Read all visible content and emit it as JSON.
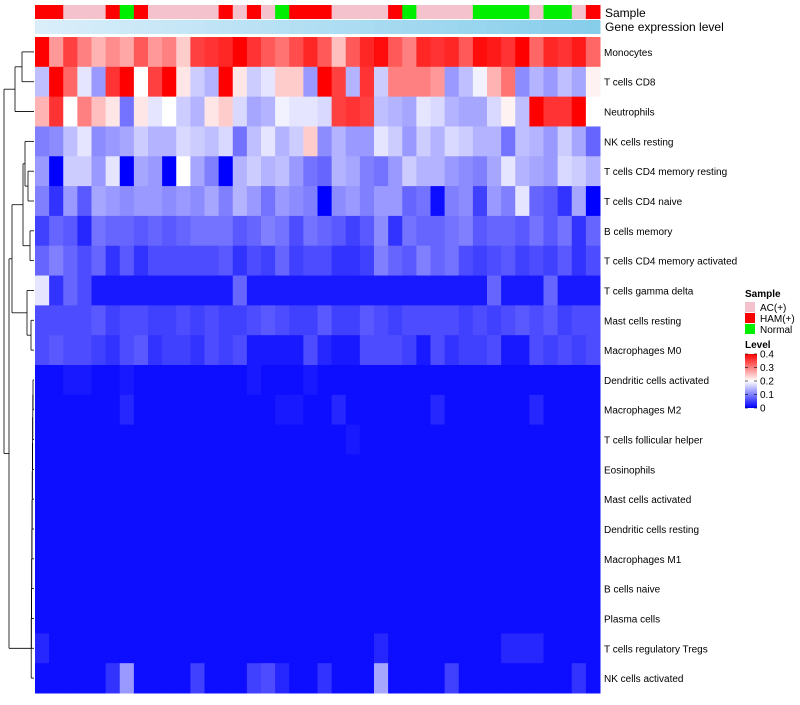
{
  "chart_data": {
    "type": "heatmap",
    "annotation_labels": {
      "sample": "Sample",
      "expression": "Gene expression level"
    },
    "legend": {
      "sample_title": "Sample",
      "sample_groups": [
        {
          "label": "AC(+)",
          "color": "#f4c2cc"
        },
        {
          "label": "HAM(+)",
          "color": "#ff0000"
        },
        {
          "label": "Normal",
          "color": "#00ee00"
        }
      ],
      "level_title": "Level",
      "level_ticks": [
        0.4,
        0.3,
        0.2,
        0.1,
        0
      ],
      "level_min": 0,
      "level_max": 0.4,
      "colors": {
        "low": "#0000ff",
        "mid": "#ffffff",
        "high": "#ff0000"
      }
    },
    "sample_groups_per_column": [
      "HAM(+)",
      "HAM(+)",
      "AC(+)",
      "AC(+)",
      "AC(+)",
      "HAM(+)",
      "Normal",
      "HAM(+)",
      "AC(+)",
      "AC(+)",
      "AC(+)",
      "AC(+)",
      "AC(+)",
      "HAM(+)",
      "AC(+)",
      "HAM(+)",
      "AC(+)",
      "Normal",
      "HAM(+)",
      "HAM(+)",
      "HAM(+)",
      "AC(+)",
      "AC(+)",
      "AC(+)",
      "AC(+)",
      "HAM(+)",
      "Normal",
      "AC(+)",
      "AC(+)",
      "AC(+)",
      "AC(+)",
      "Normal",
      "Normal",
      "Normal",
      "Normal",
      "AC(+)",
      "Normal",
      "Normal",
      "AC(+)",
      "HAM(+)"
    ],
    "rows": [
      {
        "label": "Monocytes",
        "values": [
          0.4,
          0.28,
          0.35,
          0.3,
          0.26,
          0.29,
          0.27,
          0.33,
          0.28,
          0.3,
          0.24,
          0.35,
          0.36,
          0.37,
          0.4,
          0.36,
          0.33,
          0.31,
          0.34,
          0.37,
          0.33,
          0.25,
          0.33,
          0.37,
          0.39,
          0.33,
          0.3,
          0.37,
          0.36,
          0.37,
          0.33,
          0.39,
          0.38,
          0.36,
          0.4,
          0.32,
          0.37,
          0.36,
          0.38,
          0.32
        ]
      },
      {
        "label": "T cells CD8",
        "values": [
          0.15,
          0.4,
          0.32,
          0.18,
          0.12,
          0.36,
          0.4,
          0.2,
          0.35,
          0.4,
          0.22,
          0.16,
          0.14,
          0.4,
          0.22,
          0.16,
          0.18,
          0.24,
          0.24,
          0.12,
          0.4,
          0.35,
          0.14,
          0.36,
          0.16,
          0.3,
          0.3,
          0.3,
          0.28,
          0.12,
          0.15,
          0.19,
          0.26,
          0.31,
          0.11,
          0.14,
          0.12,
          0.15,
          0.13,
          0.21
        ]
      },
      {
        "label": "Neutrophils",
        "values": [
          0.26,
          0.36,
          0.2,
          0.3,
          0.25,
          0.22,
          0.09,
          0.22,
          0.18,
          0.2,
          0.16,
          0.14,
          0.22,
          0.24,
          0.17,
          0.13,
          0.14,
          0.19,
          0.18,
          0.18,
          0.17,
          0.35,
          0.36,
          0.35,
          0.15,
          0.14,
          0.13,
          0.18,
          0.17,
          0.14,
          0.13,
          0.13,
          0.17,
          0.21,
          0.15,
          0.4,
          0.36,
          0.36,
          0.4,
          0.2
        ]
      },
      {
        "label": "NK cells resting",
        "values": [
          0.1,
          0.11,
          0.15,
          0.18,
          0.11,
          0.12,
          0.13,
          0.16,
          0.14,
          0.14,
          0.17,
          0.16,
          0.15,
          0.17,
          0.09,
          0.15,
          0.18,
          0.14,
          0.16,
          0.24,
          0.11,
          0.14,
          0.12,
          0.12,
          0.18,
          0.16,
          0.12,
          0.16,
          0.14,
          0.17,
          0.16,
          0.14,
          0.14,
          0.09,
          0.15,
          0.14,
          0.12,
          0.16,
          0.13,
          0.08
        ]
      },
      {
        "label": "T cells CD4 memory resting",
        "values": [
          0.12,
          0.0,
          0.16,
          0.16,
          0.12,
          0.18,
          0.0,
          0.13,
          0.12,
          0.0,
          0.2,
          0.13,
          0.1,
          0.0,
          0.14,
          0.16,
          0.14,
          0.15,
          0.12,
          0.09,
          0.08,
          0.14,
          0.13,
          0.1,
          0.09,
          0.12,
          0.16,
          0.14,
          0.14,
          0.12,
          0.11,
          0.1,
          0.13,
          0.18,
          0.14,
          0.13,
          0.12,
          0.17,
          0.16,
          0.14
        ]
      },
      {
        "label": "T cells CD4 naive",
        "values": [
          0.1,
          0.04,
          0.12,
          0.07,
          0.13,
          0.12,
          0.11,
          0.12,
          0.12,
          0.11,
          0.12,
          0.11,
          0.13,
          0.1,
          0.14,
          0.12,
          0.09,
          0.12,
          0.11,
          0.1,
          0.0,
          0.11,
          0.12,
          0.1,
          0.12,
          0.12,
          0.08,
          0.09,
          0.01,
          0.1,
          0.11,
          0.05,
          0.12,
          0.1,
          0.18,
          0.08,
          0.07,
          0.04,
          0.13,
          0.0
        ]
      },
      {
        "label": "B cells memory",
        "values": [
          0.05,
          0.08,
          0.07,
          0.03,
          0.09,
          0.08,
          0.08,
          0.07,
          0.08,
          0.07,
          0.08,
          0.09,
          0.09,
          0.09,
          0.07,
          0.08,
          0.1,
          0.09,
          0.06,
          0.09,
          0.08,
          0.07,
          0.05,
          0.07,
          0.11,
          0.04,
          0.09,
          0.08,
          0.08,
          0.09,
          0.1,
          0.07,
          0.08,
          0.08,
          0.07,
          0.09,
          0.07,
          0.09,
          0.04,
          0.08
        ]
      },
      {
        "label": "T cells CD4 memory activated",
        "values": [
          0.08,
          0.1,
          0.08,
          0.06,
          0.08,
          0.04,
          0.07,
          0.04,
          0.06,
          0.06,
          0.06,
          0.06,
          0.06,
          0.07,
          0.04,
          0.06,
          0.05,
          0.08,
          0.05,
          0.06,
          0.06,
          0.04,
          0.04,
          0.05,
          0.1,
          0.08,
          0.07,
          0.1,
          0.08,
          0.09,
          0.06,
          0.05,
          0.06,
          0.07,
          0.05,
          0.06,
          0.05,
          0.07,
          0.04,
          0.06
        ]
      },
      {
        "label": "T cells gamma delta",
        "values": [
          0.18,
          0.04,
          0.08,
          0.06,
          0.02,
          0.02,
          0.02,
          0.02,
          0.02,
          0.02,
          0.02,
          0.02,
          0.02,
          0.02,
          0.08,
          0.02,
          0.02,
          0.02,
          0.02,
          0.02,
          0.02,
          0.02,
          0.02,
          0.02,
          0.02,
          0.02,
          0.02,
          0.02,
          0.02,
          0.02,
          0.02,
          0.02,
          0.08,
          0.02,
          0.02,
          0.02,
          0.08,
          0.02,
          0.02,
          0.02
        ]
      },
      {
        "label": "Mast cells resting",
        "values": [
          0.06,
          0.06,
          0.06,
          0.06,
          0.07,
          0.05,
          0.06,
          0.06,
          0.05,
          0.05,
          0.06,
          0.05,
          0.06,
          0.05,
          0.05,
          0.06,
          0.07,
          0.06,
          0.05,
          0.05,
          0.07,
          0.05,
          0.05,
          0.07,
          0.06,
          0.05,
          0.06,
          0.06,
          0.06,
          0.06,
          0.05,
          0.06,
          0.05,
          0.06,
          0.07,
          0.06,
          0.07,
          0.05,
          0.06,
          0.06
        ]
      },
      {
        "label": "Macrophages M0",
        "values": [
          0.06,
          0.07,
          0.06,
          0.06,
          0.05,
          0.04,
          0.06,
          0.07,
          0.04,
          0.05,
          0.05,
          0.04,
          0.06,
          0.05,
          0.06,
          0.02,
          0.02,
          0.02,
          0.02,
          0.06,
          0.03,
          0.02,
          0.02,
          0.06,
          0.06,
          0.06,
          0.05,
          0.02,
          0.06,
          0.04,
          0.05,
          0.05,
          0.06,
          0.02,
          0.02,
          0.06,
          0.05,
          0.06,
          0.05,
          0.06
        ]
      },
      {
        "label": "Dendritic cells activated",
        "values": [
          0.01,
          0.01,
          0.02,
          0.02,
          0.01,
          0.01,
          0.02,
          0.01,
          0.01,
          0.01,
          0.01,
          0.01,
          0.01,
          0.01,
          0.01,
          0.02,
          0.01,
          0.01,
          0.01,
          0.02,
          0.01,
          0.01,
          0.01,
          0.01,
          0.01,
          0.01,
          0.01,
          0.01,
          0.01,
          0.01,
          0.01,
          0.01,
          0.01,
          0.01,
          0.01,
          0.01,
          0.01,
          0.01,
          0.01,
          0.01
        ]
      },
      {
        "label": "Macrophages M2",
        "values": [
          0.01,
          0.01,
          0.01,
          0.01,
          0.01,
          0.01,
          0.03,
          0.01,
          0.01,
          0.01,
          0.01,
          0.01,
          0.01,
          0.01,
          0.01,
          0.01,
          0.01,
          0.02,
          0.02,
          0.01,
          0.01,
          0.03,
          0.01,
          0.01,
          0.01,
          0.01,
          0.01,
          0.01,
          0.03,
          0.01,
          0.01,
          0.01,
          0.01,
          0.01,
          0.01,
          0.03,
          0.01,
          0.01,
          0.01,
          0.01
        ]
      },
      {
        "label": "T cells follicular helper",
        "values": [
          0.01,
          0.01,
          0.01,
          0.01,
          0.01,
          0.01,
          0.01,
          0.01,
          0.01,
          0.01,
          0.01,
          0.01,
          0.01,
          0.01,
          0.01,
          0.01,
          0.01,
          0.01,
          0.01,
          0.01,
          0.01,
          0.01,
          0.02,
          0.01,
          0.01,
          0.01,
          0.01,
          0.01,
          0.01,
          0.01,
          0.01,
          0.01,
          0.01,
          0.01,
          0.01,
          0.01,
          0.01,
          0.01,
          0.01,
          0.01
        ]
      },
      {
        "label": "Eosinophils",
        "values": [
          0.01,
          0.01,
          0.01,
          0.01,
          0.01,
          0.01,
          0.01,
          0.01,
          0.01,
          0.01,
          0.01,
          0.01,
          0.01,
          0.01,
          0.01,
          0.01,
          0.01,
          0.01,
          0.01,
          0.01,
          0.01,
          0.01,
          0.01,
          0.01,
          0.01,
          0.01,
          0.01,
          0.01,
          0.01,
          0.01,
          0.01,
          0.01,
          0.01,
          0.01,
          0.01,
          0.01,
          0.01,
          0.01,
          0.01,
          0.01
        ]
      },
      {
        "label": "Mast cells activated",
        "values": [
          0.01,
          0.01,
          0.01,
          0.01,
          0.01,
          0.01,
          0.01,
          0.01,
          0.01,
          0.01,
          0.01,
          0.01,
          0.01,
          0.01,
          0.01,
          0.01,
          0.01,
          0.01,
          0.01,
          0.01,
          0.01,
          0.01,
          0.01,
          0.01,
          0.01,
          0.01,
          0.01,
          0.01,
          0.01,
          0.01,
          0.01,
          0.01,
          0.01,
          0.01,
          0.01,
          0.01,
          0.01,
          0.01,
          0.01,
          0.01
        ]
      },
      {
        "label": "Dendritic cells resting",
        "values": [
          0.01,
          0.01,
          0.01,
          0.01,
          0.01,
          0.01,
          0.01,
          0.01,
          0.01,
          0.01,
          0.01,
          0.01,
          0.01,
          0.01,
          0.01,
          0.01,
          0.01,
          0.01,
          0.01,
          0.01,
          0.01,
          0.01,
          0.01,
          0.01,
          0.01,
          0.01,
          0.01,
          0.01,
          0.01,
          0.01,
          0.01,
          0.01,
          0.01,
          0.01,
          0.01,
          0.01,
          0.01,
          0.01,
          0.01,
          0.01
        ]
      },
      {
        "label": "Macrophages M1",
        "values": [
          0.01,
          0.01,
          0.01,
          0.01,
          0.01,
          0.01,
          0.01,
          0.01,
          0.01,
          0.01,
          0.01,
          0.01,
          0.01,
          0.01,
          0.01,
          0.01,
          0.01,
          0.01,
          0.01,
          0.01,
          0.01,
          0.01,
          0.01,
          0.01,
          0.01,
          0.01,
          0.01,
          0.01,
          0.01,
          0.01,
          0.01,
          0.01,
          0.01,
          0.01,
          0.01,
          0.01,
          0.01,
          0.01,
          0.01,
          0.01
        ]
      },
      {
        "label": "B cells naive",
        "values": [
          0.01,
          0.01,
          0.01,
          0.01,
          0.01,
          0.01,
          0.01,
          0.01,
          0.01,
          0.01,
          0.01,
          0.01,
          0.01,
          0.01,
          0.01,
          0.01,
          0.01,
          0.01,
          0.01,
          0.01,
          0.01,
          0.01,
          0.01,
          0.01,
          0.01,
          0.01,
          0.01,
          0.01,
          0.01,
          0.01,
          0.01,
          0.01,
          0.01,
          0.01,
          0.01,
          0.01,
          0.01,
          0.01,
          0.01,
          0.01
        ]
      },
      {
        "label": "Plasma cells",
        "values": [
          0.01,
          0.01,
          0.01,
          0.01,
          0.01,
          0.01,
          0.01,
          0.01,
          0.01,
          0.01,
          0.01,
          0.01,
          0.01,
          0.01,
          0.01,
          0.01,
          0.01,
          0.01,
          0.01,
          0.01,
          0.01,
          0.01,
          0.01,
          0.01,
          0.01,
          0.01,
          0.01,
          0.01,
          0.01,
          0.01,
          0.01,
          0.01,
          0.01,
          0.01,
          0.01,
          0.01,
          0.01,
          0.01,
          0.01,
          0.01
        ]
      },
      {
        "label": "T cells regulatory  Tregs",
        "values": [
          0.03,
          0.01,
          0.01,
          0.01,
          0.01,
          0.01,
          0.01,
          0.01,
          0.01,
          0.01,
          0.01,
          0.01,
          0.01,
          0.01,
          0.01,
          0.01,
          0.01,
          0.01,
          0.01,
          0.01,
          0.01,
          0.01,
          0.01,
          0.01,
          0.03,
          0.01,
          0.01,
          0.01,
          0.01,
          0.01,
          0.01,
          0.01,
          0.01,
          0.03,
          0.03,
          0.03,
          0.01,
          0.01,
          0.01,
          0.01
        ]
      },
      {
        "label": "NK cells activated",
        "values": [
          0.01,
          0.01,
          0.01,
          0.01,
          0.01,
          0.04,
          0.12,
          0.01,
          0.01,
          0.01,
          0.01,
          0.05,
          0.01,
          0.01,
          0.01,
          0.05,
          0.06,
          0.03,
          0.01,
          0.01,
          0.04,
          0.01,
          0.01,
          0.01,
          0.13,
          0.01,
          0.01,
          0.01,
          0.01,
          0.05,
          0.01,
          0.01,
          0.01,
          0.01,
          0.01,
          0.01,
          0.01,
          0.01,
          0.04,
          0.01
        ]
      }
    ]
  }
}
